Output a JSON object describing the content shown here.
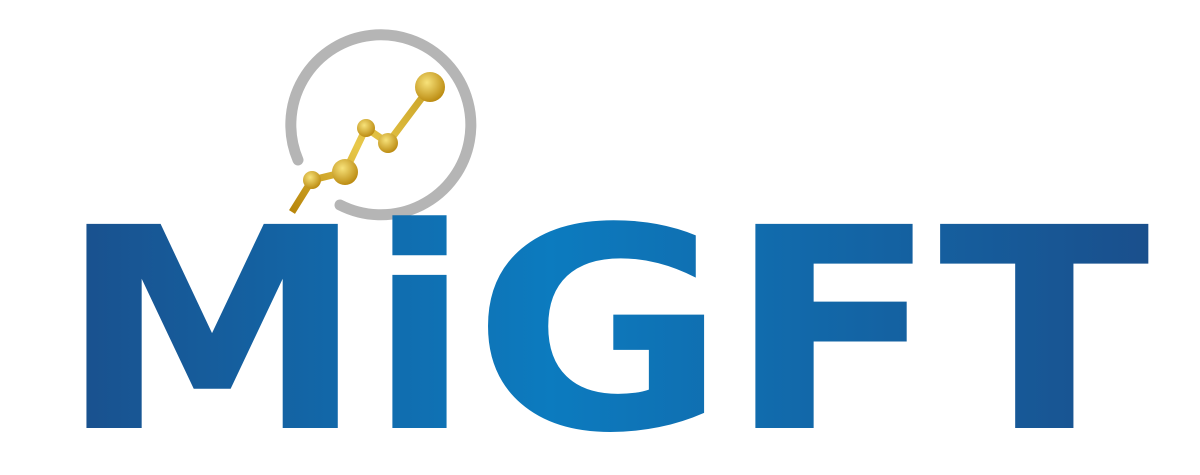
{
  "logo": {
    "text": "MiGFT"
  }
}
